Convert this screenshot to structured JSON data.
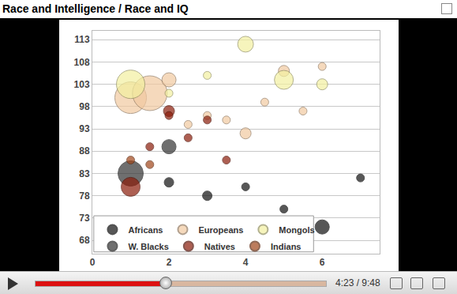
{
  "chart_data": {
    "type": "bubble",
    "title": "Race and Intelligence / Race and IQ",
    "xlim": [
      0,
      7.5
    ],
    "xticks": [
      0,
      2,
      4,
      6
    ],
    "ylim": [
      65,
      115
    ],
    "yticks": [
      68,
      73,
      78,
      83,
      88,
      93,
      98,
      103,
      108,
      113
    ],
    "grid": true,
    "legend": "lower left",
    "series": [
      {
        "name": "Africans",
        "color": "#111111",
        "x": [
          2,
          3,
          4,
          5,
          6,
          7
        ],
        "values": [
          81,
          78,
          80,
          75,
          71,
          82
        ],
        "sizes": [
          12,
          12,
          10,
          10,
          18,
          10
        ]
      },
      {
        "name": "Europeans",
        "color": "#f2c9a0",
        "x": [
          1,
          1.5,
          2,
          2.5,
          3,
          3.5,
          4,
          4.5,
          5,
          5.5,
          6
        ],
        "values": [
          100,
          101,
          104,
          94,
          96,
          95,
          92,
          99,
          106,
          97,
          107
        ],
        "sizes": [
          40,
          44,
          18,
          10,
          10,
          10,
          14,
          10,
          14,
          10,
          10
        ]
      },
      {
        "name": "Mongols",
        "color": "#f3f0a0",
        "x": [
          1,
          2,
          3,
          4,
          5,
          6
        ],
        "values": [
          103,
          101,
          105,
          112,
          104,
          103
        ],
        "sizes": [
          36,
          10,
          10,
          20,
          24,
          14
        ]
      },
      {
        "name": "W. Blacks",
        "color": "#333333",
        "x": [
          1,
          2
        ],
        "values": [
          83,
          89
        ],
        "sizes": [
          32,
          18
        ]
      },
      {
        "name": "Natives",
        "color": "#8b1c0a",
        "x": [
          1,
          1.5,
          2,
          2,
          2.5,
          3,
          3.5
        ],
        "values": [
          80,
          89,
          97,
          96,
          91,
          95,
          86
        ],
        "sizes": [
          24,
          10,
          14,
          10,
          10,
          10,
          10
        ]
      },
      {
        "name": "Indians",
        "color": "#a0461a",
        "x": [
          1,
          1.5
        ],
        "values": [
          86,
          85
        ],
        "sizes": [
          10,
          10
        ]
      }
    ]
  },
  "video_player": {
    "time": "4:23 / 9:48"
  }
}
